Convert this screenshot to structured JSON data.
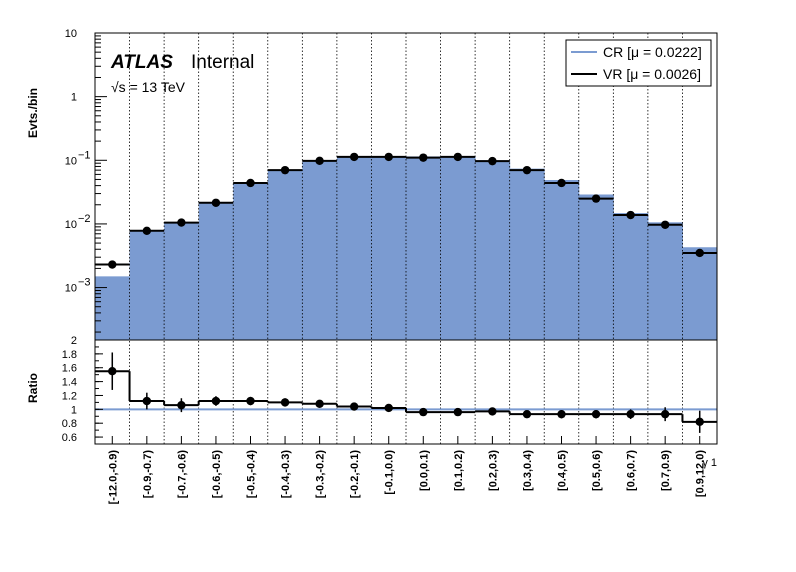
{
  "chart_data": {
    "type": "bar",
    "categories": [
      "[-12.0,-0.9)",
      "[-0.9,-0.7)",
      "[-0.7,-0.6)",
      "[-0.6,-0.5)",
      "[-0.5,-0.4)",
      "[-0.4,-0.3)",
      "[-0.3,-0.2)",
      "[-0.2,-0.1)",
      "[-0.1,0.0)",
      "[0.0,0.1)",
      "[0.1,0.2)",
      "[0.2,0.3)",
      "[0.3,0.4)",
      "[0.4,0.5)",
      "[0.5,0.6)",
      "[0.6,0.7)",
      "[0.7,0.9)",
      "[0.9,12.0)"
    ],
    "top": {
      "ylabel": "Evts./bin",
      "yscale": "log",
      "ylim": [
        0.00015,
        10
      ],
      "yticks": [
        {
          "v": 0.001,
          "label": "10",
          "exp": "−3"
        },
        {
          "v": 0.01,
          "label": "10",
          "exp": "−2"
        },
        {
          "v": 0.1,
          "label": "10",
          "exp": "−1"
        },
        {
          "v": 1,
          "label": "1",
          "exp": ""
        },
        {
          "v": 10,
          "label": "10",
          "exp": ""
        }
      ],
      "series": [
        {
          "name": "CR [μ = 0.0222]",
          "kind": "filled-hist",
          "color": "#7b9bd1",
          "values": [
            0.0015,
            0.0078,
            0.0105,
            0.021,
            0.044,
            0.07,
            0.098,
            0.113,
            0.116,
            0.115,
            0.116,
            0.1,
            0.074,
            0.049,
            0.029,
            0.0148,
            0.0106,
            0.0043
          ]
        },
        {
          "name": "VR [μ = 0.0026]",
          "kind": "line-hist-points",
          "color": "#000000",
          "values": [
            0.0023,
            0.0078,
            0.0105,
            0.0215,
            0.044,
            0.07,
            0.098,
            0.113,
            0.113,
            0.11,
            0.113,
            0.097,
            0.07,
            0.044,
            0.025,
            0.0138,
            0.0097,
            0.0035
          ]
        }
      ]
    },
    "ratio": {
      "ylabel": "Ratio",
      "ylim": [
        0.5,
        2.0
      ],
      "yticks": [
        0.6,
        0.8,
        1,
        1.2,
        1.4,
        1.6,
        1.8,
        2
      ],
      "values": [
        1.55,
        1.12,
        1.06,
        1.12,
        1.12,
        1.1,
        1.08,
        1.04,
        1.02,
        0.96,
        0.96,
        0.97,
        0.93,
        0.93,
        0.93,
        0.93,
        0.93,
        0.82
      ],
      "errors": [
        0.27,
        0.12,
        0.1,
        0.07,
        0.06,
        0.06,
        0.05,
        0.05,
        0.04,
        0.04,
        0.04,
        0.05,
        0.05,
        0.06,
        0.06,
        0.07,
        0.1,
        0.16
      ],
      "reference": 1.0
    },
    "xlabel": "γ 1",
    "legend_placement": "top-right",
    "grid_x": true
  },
  "labels": {
    "atlas": "ATLAS",
    "internal": "Internal",
    "energy": "√s = 13 TeV"
  }
}
